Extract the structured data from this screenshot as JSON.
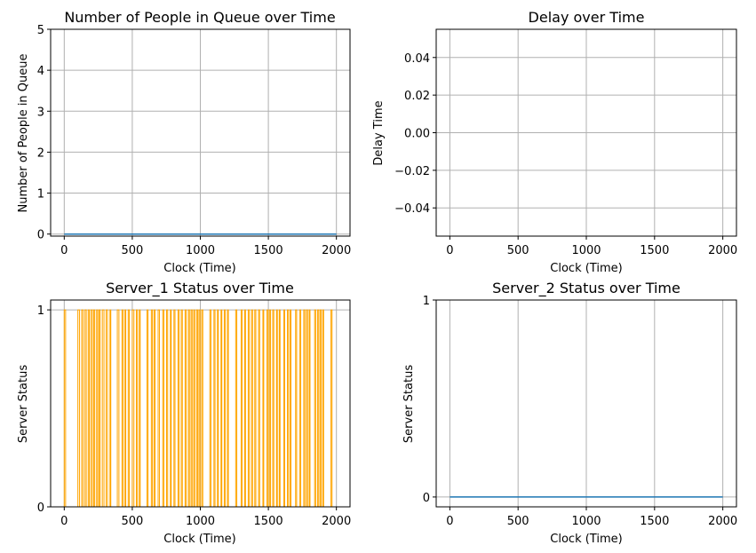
{
  "chart_data": [
    {
      "type": "line",
      "title": "Number of People in Queue over Time",
      "xlabel": "Clock (Time)",
      "ylabel": "Number of People in Queue",
      "xlim": [
        -100,
        2100
      ],
      "ylim": [
        -0.05,
        5
      ],
      "xticks": [
        0,
        500,
        1000,
        1500,
        2000
      ],
      "yticks": [
        0,
        1,
        2,
        3,
        4,
        5
      ],
      "ytick_labels": [
        "0",
        "1",
        "2",
        "3",
        "4",
        "5"
      ],
      "grid": true,
      "series": [
        {
          "color": "#1f77b4",
          "x": [
            0,
            2000
          ],
          "y": [
            0,
            0
          ]
        }
      ]
    },
    {
      "type": "line",
      "title": "Delay over Time",
      "xlabel": "Clock (Time)",
      "ylabel": "Delay Time",
      "xlim": [
        -100,
        2100
      ],
      "ylim": [
        -0.055,
        0.055
      ],
      "xticks": [
        0,
        500,
        1000,
        1500,
        2000
      ],
      "yticks": [
        -0.04,
        -0.02,
        0.0,
        0.02,
        0.04
      ],
      "ytick_labels": [
        "−0.04",
        "−0.02",
        "0.00",
        "0.02",
        "0.04"
      ],
      "grid": true,
      "series": []
    },
    {
      "type": "line",
      "title": "Server_1 Status over Time",
      "xlabel": "Clock (Time)",
      "ylabel": "Server Status",
      "xlim": [
        -100,
        2100
      ],
      "ylim": [
        0,
        1.05
      ],
      "xticks": [
        0,
        500,
        1000,
        1500,
        2000
      ],
      "yticks": [
        0,
        1
      ],
      "ytick_labels": [
        "0",
        "1"
      ],
      "grid": true,
      "series": [
        {
          "color": "#ffa500",
          "step_pulses": [
            [
              0,
              10
            ],
            [
              100,
              112
            ],
            [
              128,
              138
            ],
            [
              152,
              162
            ],
            [
              176,
              184
            ],
            [
              196,
              206
            ],
            [
              216,
              224
            ],
            [
              238,
              246
            ],
            [
              256,
              264
            ],
            [
              280,
              292
            ],
            [
              308,
              318
            ],
            [
              336,
              342
            ],
            [
              390,
              402
            ],
            [
              424,
              432
            ],
            [
              446,
              452
            ],
            [
              470,
              478
            ],
            [
              500,
              512
            ],
            [
              530,
              538
            ],
            [
              552,
              558
            ],
            [
              608,
              616
            ],
            [
              640,
              648
            ],
            [
              660,
              668
            ],
            [
              690,
              700
            ],
            [
              724,
              732
            ],
            [
              752,
              760
            ],
            [
              780,
              786
            ],
            [
              806,
              814
            ],
            [
              836,
              844
            ],
            [
              860,
              868
            ],
            [
              888,
              896
            ],
            [
              912,
              920
            ],
            [
              932,
              940
            ],
            [
              952,
              958
            ],
            [
              972,
              980
            ],
            [
              990,
              998
            ],
            [
              1010,
              1018
            ],
            [
              1070,
              1078
            ],
            [
              1100,
              1108
            ],
            [
              1126,
              1132
            ],
            [
              1152,
              1158
            ],
            [
              1176,
              1184
            ],
            [
              1200,
              1206
            ],
            [
              1260,
              1268
            ],
            [
              1300,
              1308
            ],
            [
              1326,
              1332
            ],
            [
              1352,
              1360
            ],
            [
              1376,
              1384
            ],
            [
              1400,
              1408
            ],
            [
              1428,
              1436
            ],
            [
              1460,
              1466
            ],
            [
              1490,
              1498
            ],
            [
              1508,
              1516
            ],
            [
              1532,
              1540
            ],
            [
              1560,
              1566
            ],
            [
              1580,
              1586
            ],
            [
              1614,
              1620
            ],
            [
              1640,
              1648
            ],
            [
              1660,
              1666
            ],
            [
              1700,
              1708
            ],
            [
              1730,
              1738
            ],
            [
              1760,
              1768
            ],
            [
              1780,
              1788
            ],
            [
              1800,
              1806
            ],
            [
              1840,
              1848
            ],
            [
              1862,
              1870
            ],
            [
              1880,
              1888
            ],
            [
              1900,
              1906
            ],
            [
              1960,
              1968
            ]
          ]
        }
      ]
    },
    {
      "type": "line",
      "title": "Server_2 Status over Time",
      "xlabel": "Clock (Time)",
      "ylabel": "Server Status",
      "xlim": [
        -100,
        2100
      ],
      "ylim": [
        -0.05,
        1.0
      ],
      "xticks": [
        0,
        500,
        1000,
        1500,
        2000
      ],
      "yticks": [
        0,
        1
      ],
      "ytick_labels": [
        "0",
        "1"
      ],
      "grid": true,
      "series": [
        {
          "color": "#1f77b4",
          "x": [
            0,
            2000
          ],
          "y": [
            0,
            0
          ]
        }
      ]
    }
  ]
}
